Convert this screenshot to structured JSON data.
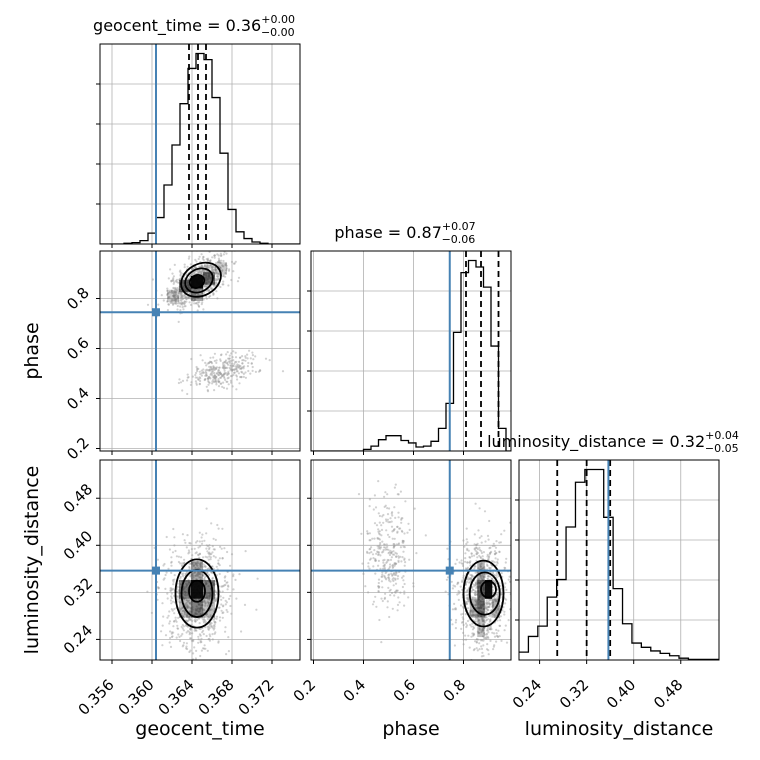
{
  "chart_data": {
    "type": "scatter",
    "figure": "corner plot",
    "parameters": [
      "geocent_time",
      "phase",
      "luminosity_distance"
    ],
    "injection": {
      "geocent_time": 0.3604,
      "phase": 0.745,
      "luminosity_distance": 0.357
    },
    "colors": {
      "truth": "#4682b4",
      "hist": "#000000",
      "points": "#9a9a9a",
      "grid": "#b0b0b0",
      "density": "#000000"
    },
    "grid": true,
    "titles": [
      {
        "param": "geocent_time",
        "text": "geocent_time = 0.36",
        "sup": "+0.00",
        "sub": "−0.00"
      },
      {
        "param": "phase",
        "text": "phase = 0.87",
        "sup": "+0.07",
        "sub": "−0.06"
      },
      {
        "param": "luminosity_distance",
        "text": "luminosity_distance = 0.32",
        "sup": "+0.04",
        "sub": "−0.05"
      }
    ],
    "axes": {
      "geocent_time": {
        "label": "geocent_time",
        "range": [
          0.3548,
          0.3748
        ],
        "ticks": [
          0.356,
          0.36,
          0.364,
          0.368,
          0.372
        ],
        "tick_labels": [
          "0.356",
          "0.360",
          "0.364",
          "0.368",
          "0.372"
        ]
      },
      "phase": {
        "label": "phase",
        "range": [
          0.19,
          0.99
        ],
        "ticks": [
          0.2,
          0.4,
          0.6,
          0.8
        ],
        "tick_labels": [
          "0.2",
          "0.4",
          "0.6",
          "0.8"
        ]
      },
      "luminosity_distance": {
        "label": "luminosity_distance",
        "range": [
          0.205,
          0.545
        ],
        "ticks": [
          0.24,
          0.32,
          0.4,
          0.48
        ],
        "tick_labels": [
          "0.24",
          "0.32",
          "0.40",
          "0.48"
        ]
      }
    },
    "histograms": {
      "geocent_time": {
        "quantiles": [
          0.3637,
          0.3646,
          0.3654
        ],
        "bins": [
          0.3548,
          0.3556,
          0.3564,
          0.3572,
          0.358,
          0.3588,
          0.3596,
          0.3604,
          0.3612,
          0.362,
          0.3628,
          0.3636,
          0.3644,
          0.3652,
          0.366,
          0.3668,
          0.3676,
          0.3684,
          0.3692,
          0.37,
          0.3708,
          0.3716,
          0.3724,
          0.3732,
          0.374,
          0.3748
        ],
        "counts": [
          0,
          0,
          0,
          1,
          2,
          5,
          16,
          39,
          87,
          146,
          207,
          259,
          281,
          272,
          216,
          134,
          51,
          18,
          8,
          3,
          1,
          0,
          0,
          0,
          0
        ]
      },
      "phase": {
        "quantiles": [
          0.81,
          0.87,
          0.94
        ],
        "bins": [
          0.19,
          0.22,
          0.25,
          0.28,
          0.31,
          0.34,
          0.37,
          0.4,
          0.43,
          0.46,
          0.49,
          0.52,
          0.55,
          0.58,
          0.61,
          0.64,
          0.67,
          0.7,
          0.73,
          0.76,
          0.79,
          0.82,
          0.85,
          0.88,
          0.91,
          0.94,
          0.97,
          0.99
        ],
        "counts": [
          0,
          0,
          0,
          0,
          0,
          0,
          0,
          2,
          6,
          14,
          19,
          19,
          13,
          10,
          5,
          6,
          12,
          28,
          59,
          147,
          221,
          236,
          228,
          203,
          130,
          28,
          0
        ]
      },
      "luminosity_distance": {
        "quantiles": [
          0.27,
          0.32,
          0.36
        ],
        "bins": [
          0.205,
          0.221,
          0.237,
          0.253,
          0.269,
          0.285,
          0.301,
          0.317,
          0.333,
          0.349,
          0.365,
          0.381,
          0.397,
          0.413,
          0.429,
          0.445,
          0.461,
          0.477,
          0.493,
          0.509,
          0.525,
          0.545
        ],
        "counts": [
          13,
          39,
          56,
          104,
          133,
          220,
          294,
          315,
          315,
          236,
          118,
          60,
          28,
          21,
          15,
          11,
          7,
          3,
          1,
          1,
          1
        ]
      }
    },
    "contour_panels": [
      {
        "x": "geocent_time",
        "y": "phase",
        "clusters": [
          {
            "center": [
              0.3645,
              0.865
            ],
            "spread": [
              0.0014,
              0.05
            ],
            "rho": 0.6
          },
          {
            "center": [
              0.367,
              0.51
            ],
            "spread": [
              0.0018,
              0.035
            ],
            "rho": 0.45
          }
        ],
        "density_cells": [
          {
            "x": 0.3645,
            "y": 0.865,
            "w": 0.0012,
            "h": 0.05,
            "shade": 0.95
          },
          {
            "x": 0.3633,
            "y": 0.85,
            "w": 0.0012,
            "h": 0.05,
            "shade": 0.55
          },
          {
            "x": 0.3657,
            "y": 0.88,
            "w": 0.0012,
            "h": 0.05,
            "shade": 0.55
          },
          {
            "x": 0.3645,
            "y": 0.815,
            "w": 0.0012,
            "h": 0.05,
            "shade": 0.35
          },
          {
            "x": 0.3621,
            "y": 0.81,
            "w": 0.0012,
            "h": 0.05,
            "shade": 0.2
          },
          {
            "x": 0.3669,
            "y": 0.92,
            "w": 0.0012,
            "h": 0.05,
            "shade": 0.2
          }
        ],
        "contours": [
          {
            "cx": 0.3645,
            "cy": 0.868,
            "rx": 0.00075,
            "ry": 0.025,
            "angle": -0.5
          },
          {
            "cx": 0.3647,
            "cy": 0.872,
            "rx": 0.00145,
            "ry": 0.045,
            "angle": -0.5
          },
          {
            "cx": 0.3649,
            "cy": 0.875,
            "rx": 0.0021,
            "ry": 0.063,
            "angle": -0.5
          }
        ]
      },
      {
        "x": "geocent_time",
        "y": "luminosity_distance",
        "clusters": [
          {
            "center": [
              0.3645,
              0.315
            ],
            "spread": [
              0.0016,
              0.045
            ],
            "rho": 0.0
          }
        ],
        "density_cells": [
          {
            "x": 0.3645,
            "y": 0.325,
            "w": 0.0012,
            "h": 0.032,
            "shade": 0.95
          },
          {
            "x": 0.3633,
            "y": 0.325,
            "w": 0.0012,
            "h": 0.032,
            "shade": 0.5
          },
          {
            "x": 0.3657,
            "y": 0.325,
            "w": 0.0012,
            "h": 0.032,
            "shade": 0.5
          },
          {
            "x": 0.3645,
            "y": 0.293,
            "w": 0.0012,
            "h": 0.032,
            "shade": 0.5
          },
          {
            "x": 0.3645,
            "y": 0.357,
            "w": 0.0012,
            "h": 0.032,
            "shade": 0.35
          },
          {
            "x": 0.3633,
            "y": 0.293,
            "w": 0.0012,
            "h": 0.032,
            "shade": 0.25
          },
          {
            "x": 0.3657,
            "y": 0.293,
            "w": 0.0012,
            "h": 0.032,
            "shade": 0.25
          }
        ],
        "contours": [
          {
            "cx": 0.3645,
            "cy": 0.322,
            "rx": 0.0008,
            "ry": 0.018,
            "angle": 0
          },
          {
            "cx": 0.3645,
            "cy": 0.318,
            "rx": 0.00155,
            "ry": 0.04,
            "angle": 0
          },
          {
            "cx": 0.3645,
            "cy": 0.318,
            "rx": 0.00215,
            "ry": 0.058,
            "angle": 0
          }
        ]
      },
      {
        "x": "phase",
        "y": "luminosity_distance",
        "clusters": [
          {
            "center": [
              0.875,
              0.315
            ],
            "spread": [
              0.05,
              0.045
            ],
            "rho": 0.0
          },
          {
            "center": [
              0.5,
              0.38
            ],
            "spread": [
              0.045,
              0.05
            ],
            "rho": 0.0
          }
        ],
        "density_cells": [
          {
            "x": 0.9,
            "y": 0.325,
            "w": 0.03,
            "h": 0.032,
            "shade": 0.95
          },
          {
            "x": 0.87,
            "y": 0.325,
            "w": 0.03,
            "h": 0.032,
            "shade": 0.6
          },
          {
            "x": 0.87,
            "y": 0.293,
            "w": 0.03,
            "h": 0.032,
            "shade": 0.55
          },
          {
            "x": 0.84,
            "y": 0.293,
            "w": 0.03,
            "h": 0.032,
            "shade": 0.3
          },
          {
            "x": 0.87,
            "y": 0.357,
            "w": 0.03,
            "h": 0.032,
            "shade": 0.3
          },
          {
            "x": 0.93,
            "y": 0.293,
            "w": 0.03,
            "h": 0.032,
            "shade": 0.3
          },
          {
            "x": 0.87,
            "y": 0.26,
            "w": 0.03,
            "h": 0.032,
            "shade": 0.25
          }
        ],
        "contours": [
          {
            "cx": 0.9,
            "cy": 0.325,
            "rx": 0.03,
            "ry": 0.014,
            "angle": 0
          },
          {
            "cx": 0.885,
            "cy": 0.318,
            "rx": 0.06,
            "ry": 0.036,
            "angle": 0
          },
          {
            "cx": 0.88,
            "cy": 0.318,
            "rx": 0.08,
            "ry": 0.056,
            "angle": 0
          }
        ]
      }
    ]
  }
}
